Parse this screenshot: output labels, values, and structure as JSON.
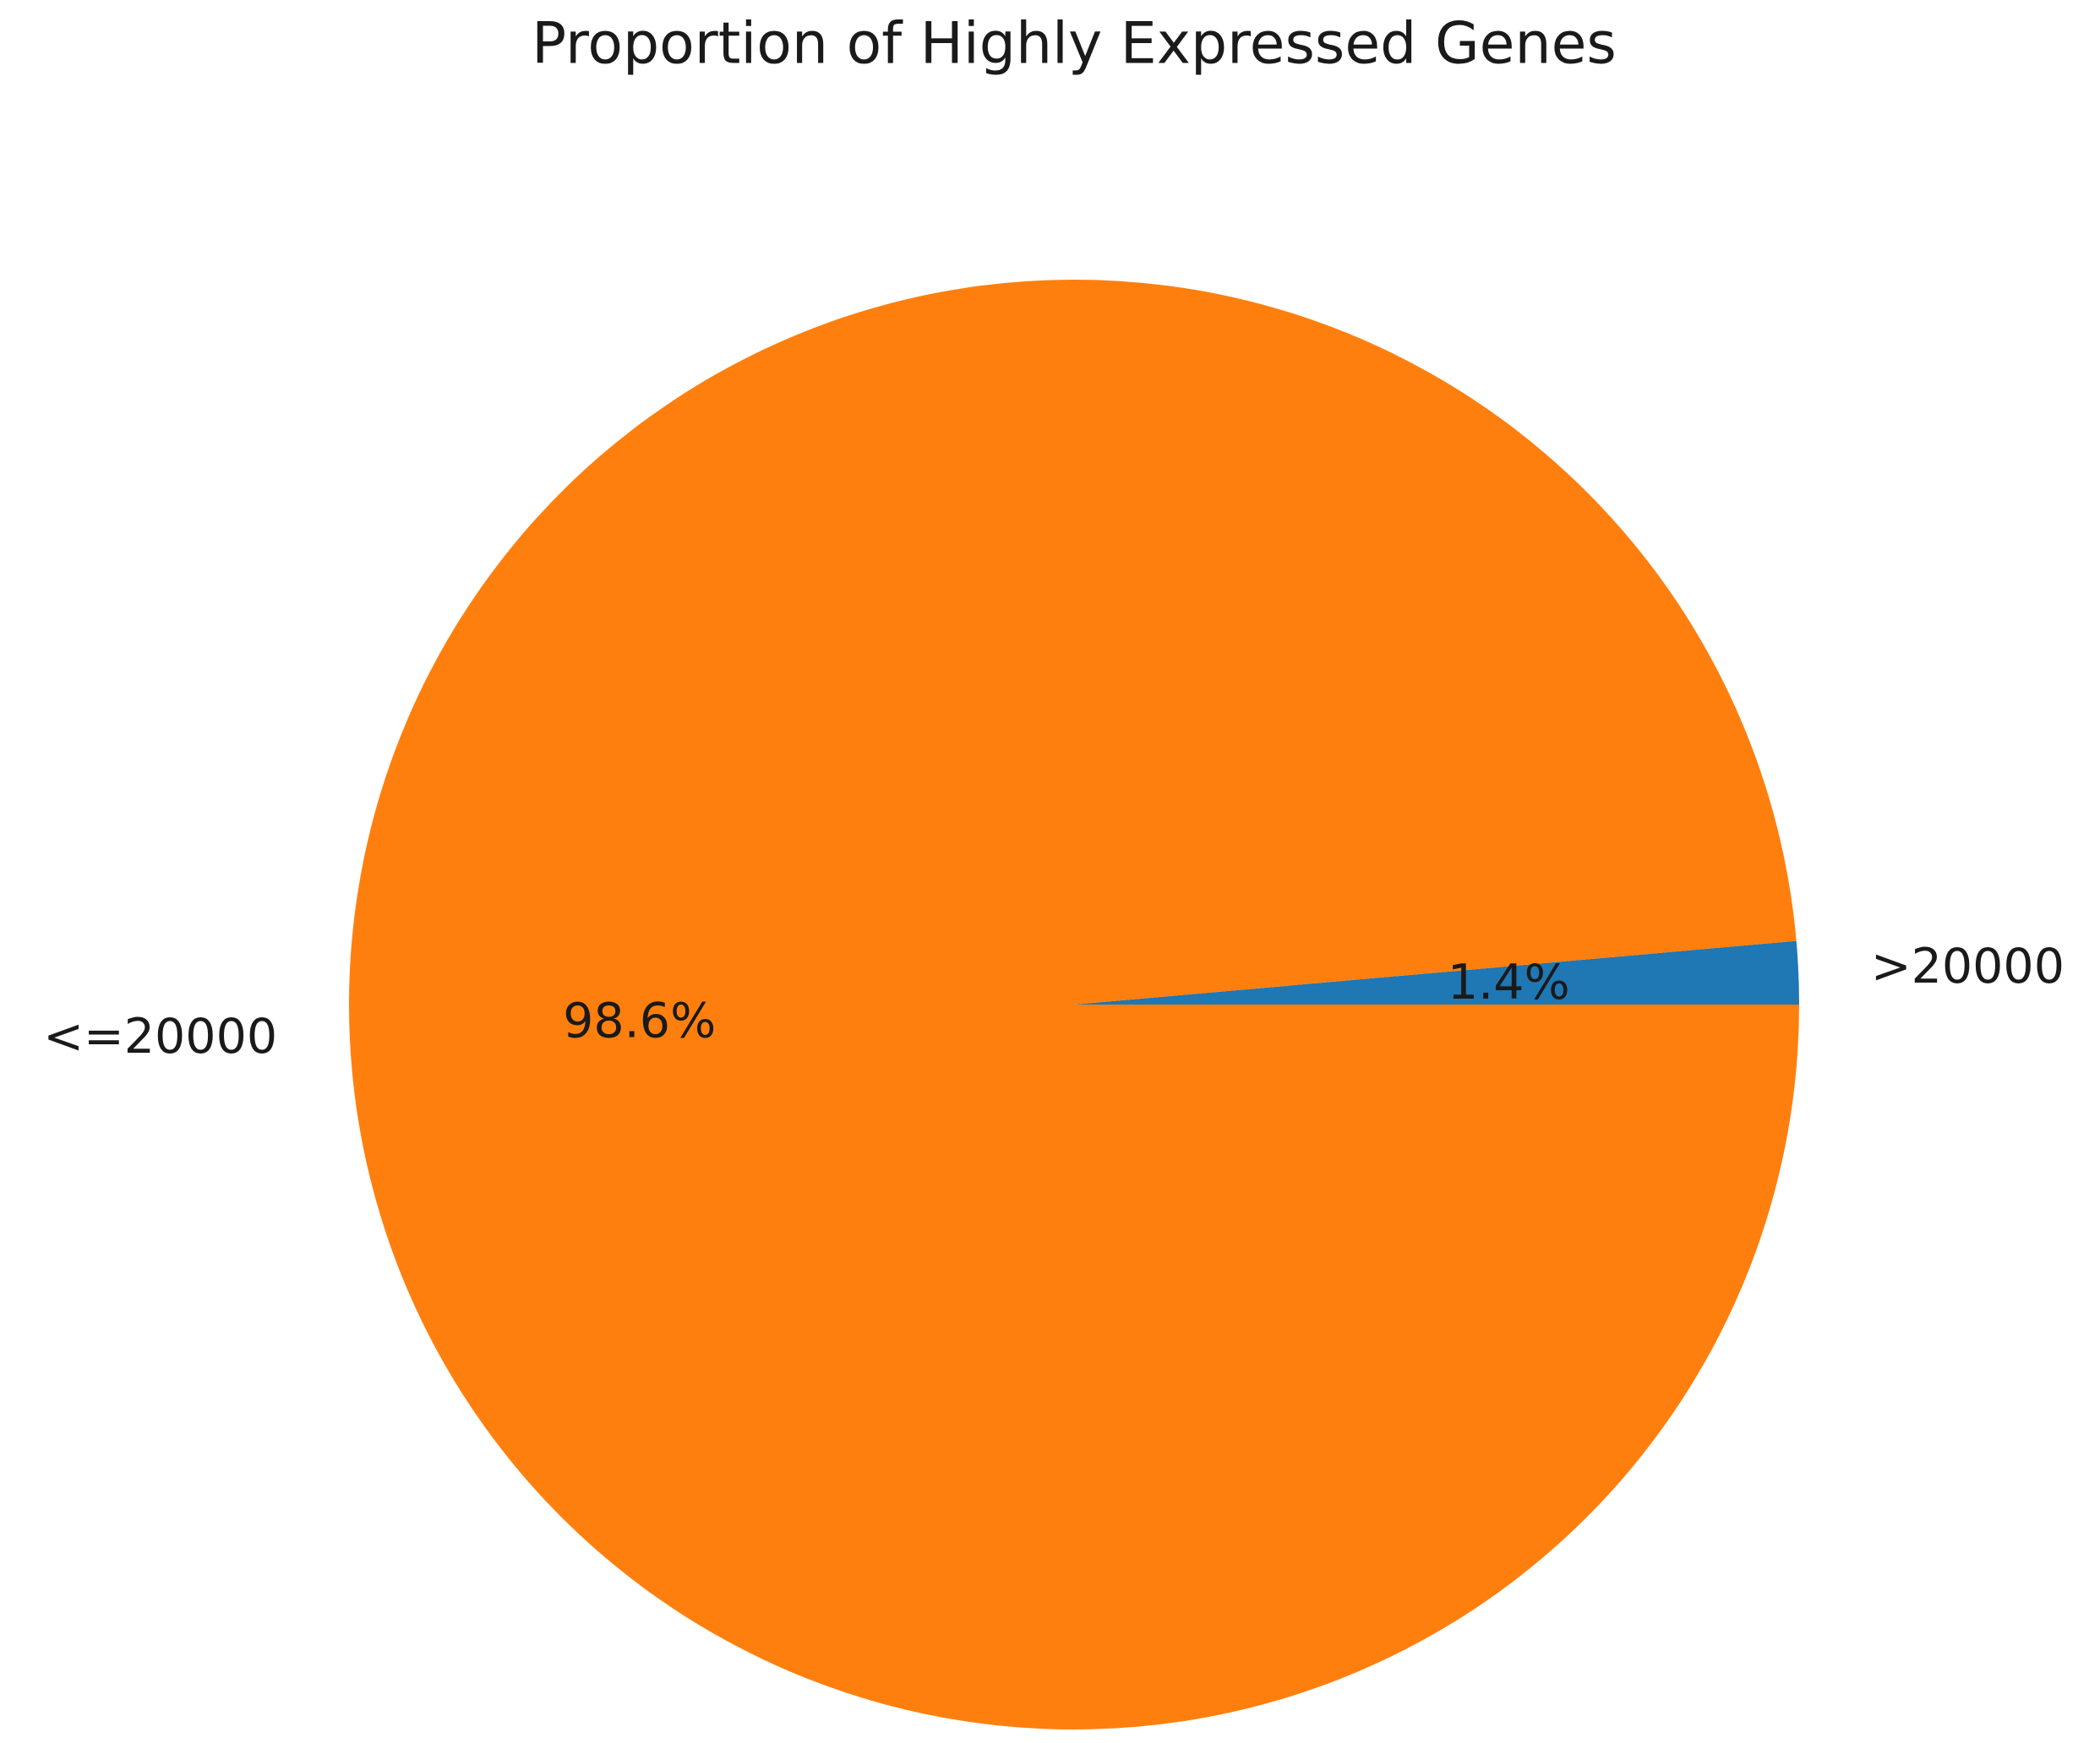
{
  "chart_data": {
    "type": "pie",
    "title": "Proportion of Highly Expressed Genes",
    "categories": [
      ">20000",
      "<=20000"
    ],
    "values": [
      1.4,
      98.6
    ],
    "value_labels": [
      "1.4%",
      "98.6%"
    ],
    "colors": [
      "#1f77b4",
      "#ff7f0e"
    ]
  }
}
